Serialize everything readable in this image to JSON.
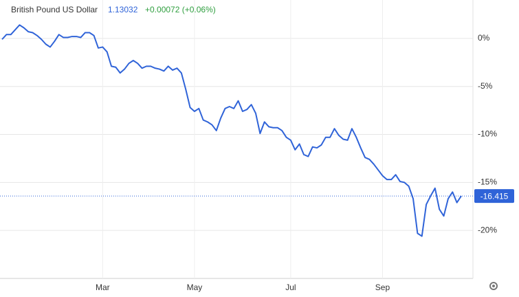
{
  "chart_data": {
    "type": "line",
    "title": "British Pound US Dollar",
    "price": "1.13032",
    "change": "+0.00072 (+0.06%)",
    "categories": [
      null,
      null,
      null,
      null,
      null,
      null,
      null,
      null,
      null,
      null,
      null,
      null,
      null,
      null,
      null,
      null,
      null,
      null,
      null,
      null,
      null,
      null,
      null,
      "Mar",
      null,
      null,
      null,
      null,
      null,
      null,
      null,
      null,
      null,
      null,
      null,
      null,
      null,
      null,
      null,
      null,
      null,
      null,
      null,
      null,
      "May",
      null,
      null,
      null,
      null,
      null,
      null,
      null,
      null,
      null,
      null,
      null,
      null,
      null,
      null,
      null,
      null,
      null,
      null,
      null,
      null,
      null,
      "Jul",
      null,
      null,
      null,
      null,
      null,
      null,
      null,
      null,
      null,
      null,
      null,
      null,
      null,
      null,
      null,
      null,
      null,
      null,
      null,
      null,
      "Sep",
      null,
      null,
      null,
      null,
      null,
      null,
      null,
      null,
      null,
      null,
      null,
      null,
      null,
      null,
      null,
      null,
      null,
      null
    ],
    "series": [
      {
        "name": "British Pound US Dollar",
        "color": "#2f63d8",
        "values": [
          -0.1,
          0.4,
          0.4,
          0.9,
          1.4,
          1.1,
          0.7,
          0.6,
          0.3,
          -0.1,
          -0.6,
          -0.9,
          -0.3,
          0.4,
          0.1,
          0.1,
          0.2,
          0.2,
          0.1,
          0.6,
          0.6,
          0.3,
          -1.0,
          -0.9,
          -1.4,
          -2.9,
          -3.0,
          -3.6,
          -3.2,
          -2.6,
          -2.3,
          -2.6,
          -3.1,
          -2.9,
          -2.9,
          -3.1,
          -3.2,
          -3.4,
          -2.9,
          -3.3,
          -3.1,
          -3.6,
          -5.3,
          -7.2,
          -7.6,
          -7.3,
          -8.5,
          -8.7,
          -9.0,
          -9.6,
          -8.3,
          -7.3,
          -7.1,
          -7.3,
          -6.5,
          -7.6,
          -7.4,
          -6.9,
          -7.8,
          -9.9,
          -8.7,
          -9.2,
          -9.3,
          -9.3,
          -9.6,
          -10.3,
          -10.6,
          -11.6,
          -11.0,
          -12.1,
          -12.3,
          -11.3,
          -11.4,
          -11.1,
          -10.3,
          -10.3,
          -9.4,
          -10.1,
          -10.5,
          -10.6,
          -9.4,
          -10.3,
          -11.4,
          -12.4,
          -12.6,
          -13.1,
          -13.7,
          -14.3,
          -14.7,
          -14.7,
          -14.2,
          -14.9,
          -15.0,
          -15.4,
          -16.7,
          -20.3,
          -20.6,
          -17.3,
          -16.4,
          -15.6,
          -17.8,
          -18.5,
          -16.7,
          -16.0,
          -17.1,
          -16.415
        ]
      }
    ],
    "ylim": [
      -25,
      4
    ],
    "yticks": [
      {
        "value": 0,
        "label": "0%"
      },
      {
        "value": -5,
        "label": "-5%"
      },
      {
        "value": -10,
        "label": "-10%"
      },
      {
        "value": -15,
        "label": "-15%"
      },
      {
        "value": -20,
        "label": "-20%"
      }
    ],
    "grid": true
  }
}
